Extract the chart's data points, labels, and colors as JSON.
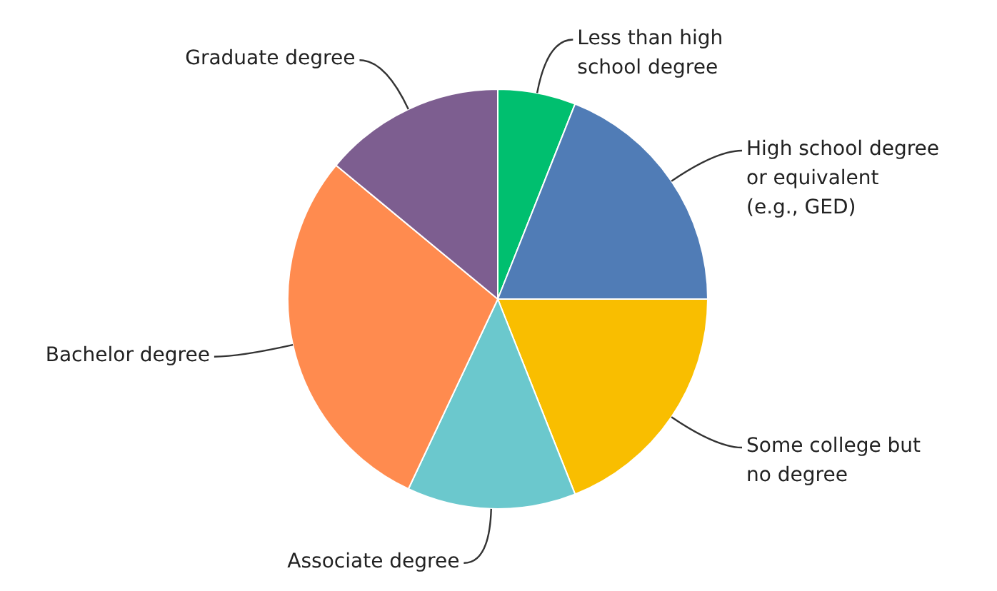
{
  "chart_data": {
    "type": "pie",
    "categories": [
      "Less than high school degree",
      "High school degree or equivalent (e.g., GED)",
      "Some college but no degree",
      "Associate degree",
      "Bachelor degree",
      "Graduate degree"
    ],
    "values": [
      6,
      19,
      19,
      13,
      29,
      14
    ],
    "colors": [
      "#00bf6f",
      "#507cb6",
      "#f9be00",
      "#6bc8cd",
      "#ff8b4f",
      "#7d5e90"
    ]
  }
}
